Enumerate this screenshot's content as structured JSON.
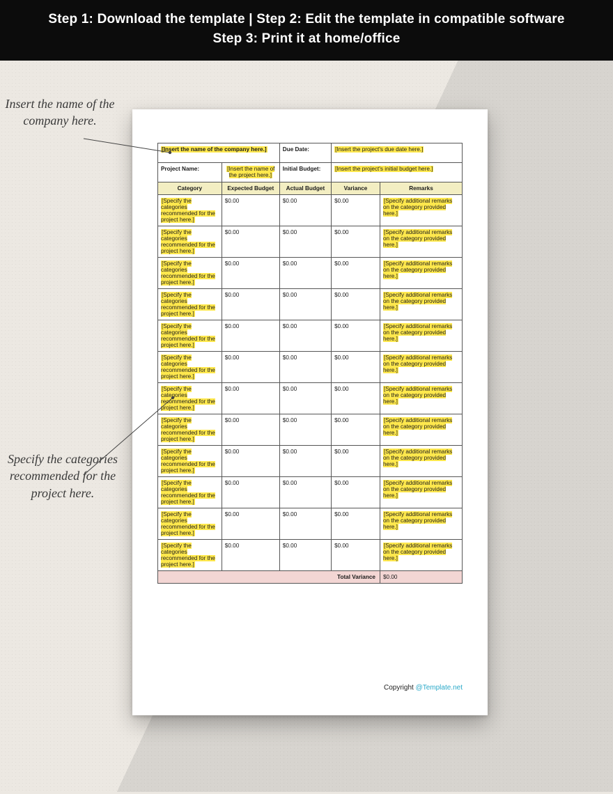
{
  "banner": {
    "line1": "Step 1: Download the template | Step 2: Edit the template in compatible software",
    "line2": "Step 3: Print it at home/office"
  },
  "callouts": {
    "company": "Insert the name of the company here.",
    "category": "Specify the categories recommended for the project here."
  },
  "colors": {
    "banner_bg": "#0c0c0c",
    "banner_text": "#ffffff",
    "page_bg": "#ece8e2",
    "page_bg2": "#d7d4cf",
    "paper_bg": "#ffffff",
    "border": "#555555",
    "header_fill": "#f3eec2",
    "highlight": "#ffe84d",
    "total_fill": "#f3d6d4",
    "link": "#2aa9c9"
  },
  "header_block": {
    "company_placeholder": "[Insert the name of the company here.]",
    "due_date_label": "Due Date:",
    "due_date_placeholder": "[Insert the project's due date here.]",
    "project_name_label": "Project Name:",
    "project_name_placeholder": "[Insert the name of the project here.]",
    "initial_budget_label": "Initial Budget:",
    "initial_budget_placeholder": "[Insert the project's initial budget here.]"
  },
  "columns": {
    "category": "Category",
    "expected": "Expected Budget",
    "actual": "Actual Budget",
    "variance": "Variance",
    "remarks": "Remarks"
  },
  "row_template": {
    "category_placeholder": "[Specify the categories recommended for the project here.]",
    "value": "$0.00",
    "remarks_placeholder": "[Specify additional remarks on the category provided here.]"
  },
  "row_count": 12,
  "total": {
    "label": "Total Variance",
    "value": "$0.00"
  },
  "footer": {
    "copyright": "Copyright ",
    "link_text": "@Template.net"
  }
}
